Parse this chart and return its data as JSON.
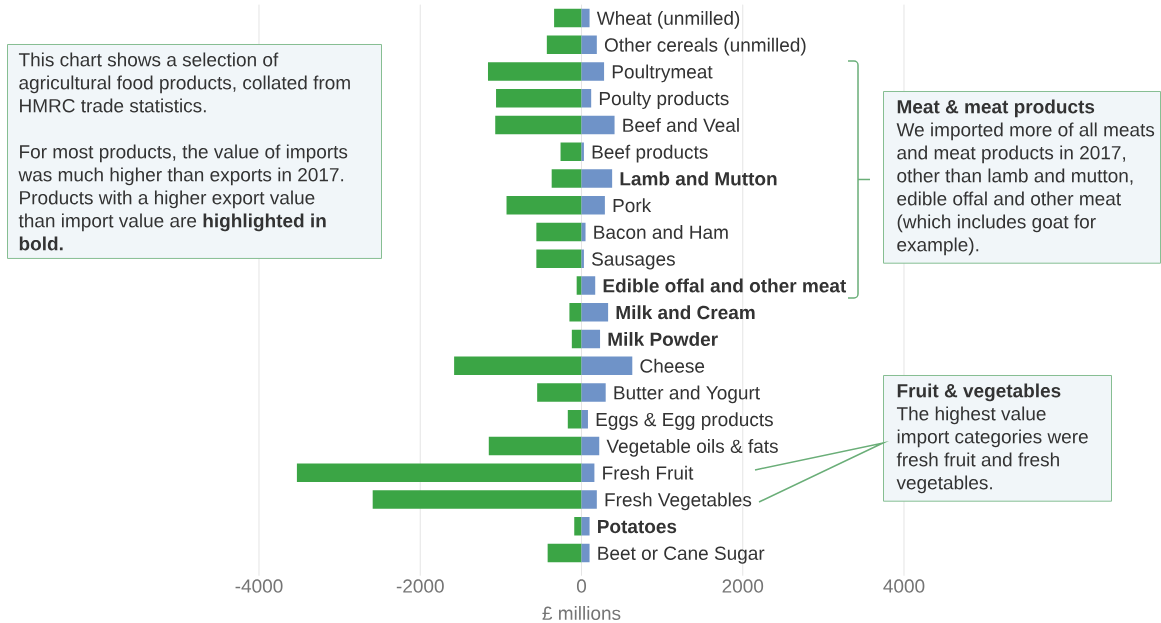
{
  "chart_data": {
    "type": "bar",
    "orientation": "horizontal",
    "stacked": true,
    "categories": [
      "Wheat (unmilled)",
      "Other cereals (unmilled)",
      "Poultrymeat",
      "Poulty products",
      "Beef and Veal",
      "Beef products",
      "Lamb and Mutton",
      "Pork",
      "Bacon and Ham",
      "Sausages",
      "Edible offal and other meat",
      "Milk and Cream",
      "Milk Powder",
      "Cheese",
      "Butter and Yogurt",
      "Eggs & Egg products",
      "Vegetable oils & fats",
      "Fresh Fruit",
      "Fresh Vegetables",
      "Potatoes",
      "Beet or Cane Sugar"
    ],
    "series": [
      {
        "color": "#3ba545",
        "values": [
          -340,
          -430,
          -1160,
          -1060,
          -1070,
          -260,
          -370,
          -930,
          -560,
          -560,
          -60,
          -150,
          -120,
          -1580,
          -550,
          -170,
          -1150,
          -3530,
          -2590,
          -90,
          -420
        ]
      },
      {
        "color": "#6f93c8",
        "values": [
          100,
          190,
          280,
          120,
          410,
          30,
          380,
          290,
          50,
          30,
          170,
          330,
          230,
          630,
          300,
          80,
          220,
          160,
          190,
          100,
          100
        ]
      }
    ],
    "xlabel": "£ millions",
    "xlim": [
      -4000,
      4000
    ],
    "xticks": [
      -4000,
      -2000,
      0,
      2000,
      4000
    ],
    "grid": "x",
    "annotations": [
      "This chart shows a selection of agricultural food products, collated from HMRC trade statistics.",
      "For most products, the value of imports was much higher than exports in 2017. Products with a higher export value than import value are **highlighted in bold.**",
      "Meat & meat products",
      "We imported more of all meats and meat products in 2017, other than lamb and mutton, edible offal and other meat (which includes goat for example).",
      "Fruit & vegetables",
      "The highest value import categories were fresh fruit and fresh vegetables."
    ]
  }
}
